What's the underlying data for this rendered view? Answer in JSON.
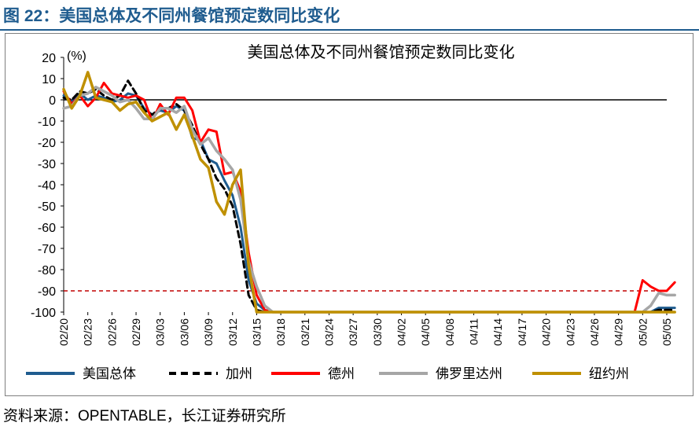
{
  "figure_title": "图 22：美国总体及不同州餐馆预定数同比变化",
  "source_text": "资料来源：OPENTABLE，长江证券研究所",
  "colors": {
    "title": "#1f5c8f",
    "usa": "#1f5c8f",
    "california": "#000000",
    "texas": "#ff0000",
    "florida": "#a6a6a6",
    "newyork": "#bf9000",
    "reference_line": "#c00000"
  },
  "chart_data": {
    "type": "line",
    "title": "美国总体及不同州餐馆预定数同比变化",
    "ylabel": "(%)",
    "ylim": [
      -100,
      20
    ],
    "yticks": [
      20,
      10,
      0,
      -10,
      -20,
      -30,
      -40,
      -50,
      -60,
      -70,
      -80,
      -90,
      -100
    ],
    "xtick_labels": [
      "02/20",
      "02/23",
      "02/26",
      "02/29",
      "03/03",
      "03/06",
      "03/09",
      "03/12",
      "03/15",
      "03/18",
      "03/21",
      "03/24",
      "03/27",
      "03/30",
      "04/02",
      "04/05",
      "04/08",
      "04/11",
      "04/14",
      "04/17",
      "04/20",
      "04/23",
      "04/26",
      "04/29",
      "05/02",
      "05/05"
    ],
    "reference_line": -90,
    "legend_position": "bottom",
    "series": [
      {
        "name": "美国总体",
        "key": "usa",
        "style": "solid",
        "values": [
          [
            0,
            2
          ],
          [
            1,
            -1
          ],
          [
            2,
            3
          ],
          [
            3,
            0
          ],
          [
            4,
            2
          ],
          [
            5,
            1
          ],
          [
            6,
            -1
          ],
          [
            7,
            0
          ],
          [
            8,
            3
          ],
          [
            9,
            2
          ],
          [
            10,
            -4
          ],
          [
            11,
            -7
          ],
          [
            12,
            -5
          ],
          [
            13,
            -6
          ],
          [
            14,
            -3
          ],
          [
            15,
            -5
          ],
          [
            16,
            -18
          ],
          [
            17,
            -19
          ],
          [
            18,
            -28
          ],
          [
            19,
            -30
          ],
          [
            20,
            -38
          ],
          [
            21,
            -45
          ],
          [
            22,
            -60
          ],
          [
            23,
            -85
          ],
          [
            24,
            -96
          ],
          [
            25,
            -99
          ],
          [
            26,
            -100
          ],
          [
            27,
            -100
          ],
          [
            28,
            -100
          ],
          [
            29,
            -100
          ],
          [
            30,
            -100
          ],
          [
            35,
            -100
          ],
          [
            40,
            -100
          ],
          [
            45,
            -100
          ],
          [
            50,
            -100
          ],
          [
            55,
            -100
          ],
          [
            60,
            -100
          ],
          [
            65,
            -100
          ],
          [
            70,
            -100
          ],
          [
            73,
            -100
          ],
          [
            74,
            -98
          ],
          [
            75,
            -98
          ],
          [
            76,
            -98
          ]
        ]
      },
      {
        "name": "加州",
        "key": "california",
        "style": "dashed",
        "values": [
          [
            0,
            1
          ],
          [
            1,
            0
          ],
          [
            2,
            4
          ],
          [
            3,
            3
          ],
          [
            4,
            5
          ],
          [
            5,
            2
          ],
          [
            6,
            0
          ],
          [
            7,
            2
          ],
          [
            8,
            9
          ],
          [
            9,
            3
          ],
          [
            10,
            -5
          ],
          [
            11,
            -7
          ],
          [
            12,
            -4
          ],
          [
            13,
            -4
          ],
          [
            14,
            -2
          ],
          [
            15,
            -5
          ],
          [
            16,
            -12
          ],
          [
            17,
            -21
          ],
          [
            18,
            -28
          ],
          [
            19,
            -37
          ],
          [
            20,
            -42
          ],
          [
            21,
            -50
          ],
          [
            22,
            -68
          ],
          [
            23,
            -92
          ],
          [
            24,
            -99
          ],
          [
            25,
            -100
          ],
          [
            26,
            -100
          ],
          [
            30,
            -100
          ],
          [
            40,
            -100
          ],
          [
            50,
            -100
          ],
          [
            60,
            -100
          ],
          [
            70,
            -100
          ],
          [
            73,
            -100
          ],
          [
            74,
            -99
          ],
          [
            75,
            -99
          ],
          [
            76,
            -99
          ]
        ]
      },
      {
        "name": "德州",
        "key": "texas",
        "style": "solid",
        "values": [
          [
            0,
            4
          ],
          [
            1,
            -2
          ],
          [
            2,
            2
          ],
          [
            3,
            -3
          ],
          [
            4,
            1
          ],
          [
            5,
            8
          ],
          [
            6,
            3
          ],
          [
            7,
            2
          ],
          [
            8,
            1
          ],
          [
            9,
            2
          ],
          [
            10,
            0
          ],
          [
            11,
            -10
          ],
          [
            12,
            -2
          ],
          [
            13,
            -7
          ],
          [
            14,
            1
          ],
          [
            15,
            1
          ],
          [
            16,
            -5
          ],
          [
            17,
            -20
          ],
          [
            18,
            -14
          ],
          [
            19,
            -15
          ],
          [
            20,
            -35
          ],
          [
            21,
            -34
          ],
          [
            22,
            -43
          ],
          [
            23,
            -72
          ],
          [
            24,
            -92
          ],
          [
            25,
            -99
          ],
          [
            26,
            -100
          ],
          [
            30,
            -100
          ],
          [
            40,
            -100
          ],
          [
            50,
            -100
          ],
          [
            60,
            -100
          ],
          [
            70,
            -100
          ],
          [
            71,
            -100
          ],
          [
            72,
            -85
          ],
          [
            73,
            -88
          ],
          [
            74,
            -90
          ],
          [
            75,
            -90
          ],
          [
            76,
            -86
          ]
        ]
      },
      {
        "name": "佛罗里达州",
        "key": "florida",
        "style": "solid",
        "values": [
          [
            0,
            -4
          ],
          [
            1,
            -3
          ],
          [
            2,
            2
          ],
          [
            3,
            3
          ],
          [
            4,
            6
          ],
          [
            5,
            4
          ],
          [
            6,
            2
          ],
          [
            7,
            -1
          ],
          [
            8,
            0
          ],
          [
            9,
            -4
          ],
          [
            10,
            -9
          ],
          [
            11,
            -9
          ],
          [
            12,
            -4
          ],
          [
            13,
            -4
          ],
          [
            14,
            -6
          ],
          [
            15,
            -3
          ],
          [
            16,
            -14
          ],
          [
            17,
            -21
          ],
          [
            18,
            -18
          ],
          [
            19,
            -24
          ],
          [
            20,
            -28
          ],
          [
            21,
            -33
          ],
          [
            22,
            -47
          ],
          [
            23,
            -76
          ],
          [
            24,
            -88
          ],
          [
            25,
            -97
          ],
          [
            26,
            -100
          ],
          [
            30,
            -100
          ],
          [
            40,
            -100
          ],
          [
            50,
            -100
          ],
          [
            60,
            -100
          ],
          [
            70,
            -100
          ],
          [
            72,
            -100
          ],
          [
            73,
            -97
          ],
          [
            74,
            -91
          ],
          [
            75,
            -92
          ],
          [
            76,
            -92
          ]
        ]
      },
      {
        "name": "纽约州",
        "key": "newyork",
        "style": "solid",
        "values": [
          [
            0,
            5
          ],
          [
            1,
            -4
          ],
          [
            2,
            2
          ],
          [
            3,
            13
          ],
          [
            4,
            1
          ],
          [
            5,
            0
          ],
          [
            6,
            -1
          ],
          [
            7,
            -5
          ],
          [
            8,
            -2
          ],
          [
            9,
            -1
          ],
          [
            10,
            -6
          ],
          [
            11,
            -10
          ],
          [
            12,
            -8
          ],
          [
            13,
            -6
          ],
          [
            14,
            -14
          ],
          [
            15,
            -7
          ],
          [
            16,
            -17
          ],
          [
            17,
            -28
          ],
          [
            18,
            -32
          ],
          [
            19,
            -48
          ],
          [
            20,
            -54
          ],
          [
            21,
            -40
          ],
          [
            22,
            -33
          ],
          [
            23,
            -78
          ],
          [
            24,
            -100
          ],
          [
            25,
            -100
          ],
          [
            26,
            -100
          ],
          [
            30,
            -100
          ],
          [
            40,
            -100
          ],
          [
            50,
            -100
          ],
          [
            60,
            -100
          ],
          [
            70,
            -100
          ],
          [
            76,
            -100
          ]
        ]
      }
    ]
  }
}
